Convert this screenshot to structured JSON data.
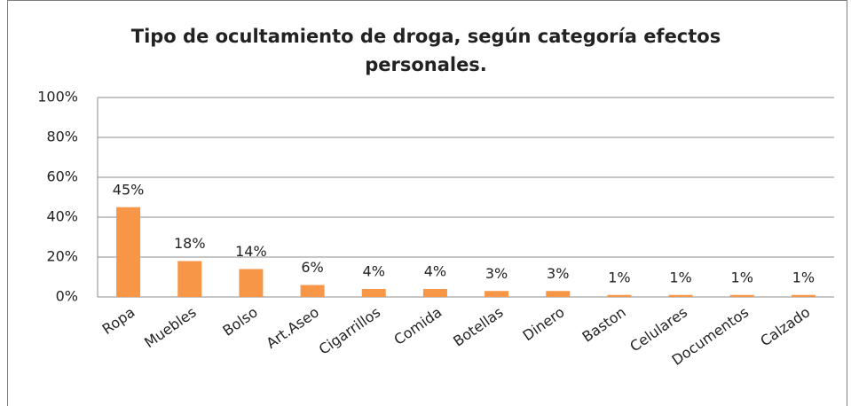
{
  "chart_data": {
    "type": "bar",
    "title": "Tipo de ocultamiento de droga, según categoría efectos personales.",
    "categories": [
      "Ropa",
      "Muebles",
      "Bolso",
      "Art.Aseo",
      "Cigarrillos",
      "Comida",
      "Botellas",
      "Dinero",
      "Baston",
      "Celulares",
      "Documentos",
      "Calzado"
    ],
    "values": [
      45,
      18,
      14,
      6,
      4,
      4,
      3,
      3,
      1,
      1,
      1,
      1
    ],
    "value_labels": [
      "45%",
      "18%",
      "14%",
      "6%",
      "4%",
      "4%",
      "3%",
      "3%",
      "1%",
      "1%",
      "1%",
      "1%"
    ],
    "color": "#f79646",
    "ylim": [
      0,
      100
    ],
    "yticks": [
      {
        "value": 0,
        "label": "0%"
      },
      {
        "value": 20,
        "label": "20%"
      },
      {
        "value": 40,
        "label": "40%"
      },
      {
        "value": 60,
        "label": "60%"
      },
      {
        "value": 80,
        "label": "80%"
      },
      {
        "value": 100,
        "label": "100%"
      }
    ],
    "grid": true
  }
}
